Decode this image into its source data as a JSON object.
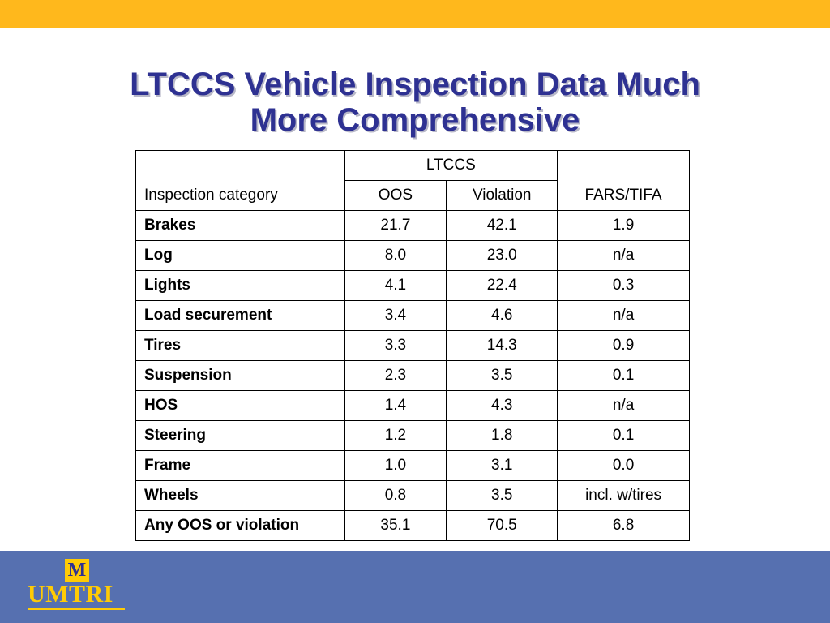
{
  "colors": {
    "top_bar": "#FFB81C",
    "footer": "#5670B0",
    "title": "#2E3192",
    "logo_gold": "#FFCB05"
  },
  "title": {
    "line1": "LTCCS Vehicle Inspection Data Much",
    "line2": "More Comprehensive"
  },
  "table": {
    "header": {
      "category": "Inspection category",
      "group": "LTCCS",
      "oos": "OOS",
      "violation": "Violation",
      "fars": "FARS/TIFA"
    },
    "rows": [
      {
        "category": "Brakes",
        "oos": "21.7",
        "violation": "42.1",
        "fars": "1.9"
      },
      {
        "category": "Log",
        "oos": "8.0",
        "violation": "23.0",
        "fars": "n/a"
      },
      {
        "category": "Lights",
        "oos": "4.1",
        "violation": "22.4",
        "fars": "0.3"
      },
      {
        "category": "Load securement",
        "oos": "3.4",
        "violation": "4.6",
        "fars": "n/a"
      },
      {
        "category": "Tires",
        "oos": "3.3",
        "violation": "14.3",
        "fars": "0.9"
      },
      {
        "category": "Suspension",
        "oos": "2.3",
        "violation": "3.5",
        "fars": "0.1"
      },
      {
        "category": "HOS",
        "oos": "1.4",
        "violation": "4.3",
        "fars": "n/a"
      },
      {
        "category": "Steering",
        "oos": "1.2",
        "violation": "1.8",
        "fars": "0.1"
      },
      {
        "category": "Frame",
        "oos": "1.0",
        "violation": "3.1",
        "fars": "0.0"
      },
      {
        "category": "Wheels",
        "oos": "0.8",
        "violation": "3.5",
        "fars": "incl. w/tires"
      },
      {
        "category": "Any OOS or violation",
        "oos": "35.1",
        "violation": "70.5",
        "fars": "6.8"
      }
    ]
  },
  "logo": {
    "mark": "M",
    "text": "UMTRI"
  }
}
